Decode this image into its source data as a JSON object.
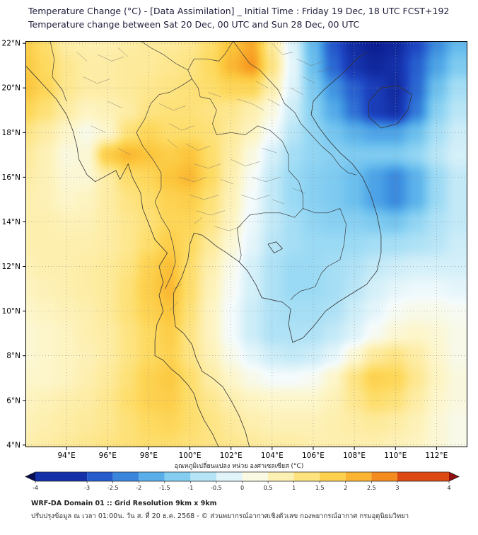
{
  "header": {
    "title_line1": "Temperature Change (°C) - [Data Assimilation] _ Initial Time : Friday 19 Dec, 18 UTC FCST+192",
    "title_line2": "Temperature change between Sat 20 Dec, 00 UTC and Sun 28 Dec, 00 UTC"
  },
  "axes": {
    "x_values": [
      94,
      96,
      98,
      100,
      102,
      104,
      106,
      108,
      110,
      112
    ],
    "x_labels": [
      "94°E",
      "96°E",
      "98°E",
      "100°E",
      "102°E",
      "104°E",
      "106°E",
      "108°E",
      "110°E",
      "112°E"
    ],
    "y_values": [
      22,
      20,
      18,
      16,
      14,
      12,
      10,
      8,
      6,
      4
    ],
    "y_labels": [
      "22°N",
      "20°N",
      "18°N",
      "16°N",
      "14°N",
      "12°N",
      "10°N",
      "8°N",
      "6°N",
      "4°N"
    ]
  },
  "colorbar": {
    "title": "อุณหภูมิเปลี่ยนแปลง หน่วย องศาเซลเซียส (°C)",
    "boundaries": [
      -4,
      -3,
      -2.5,
      -2,
      -1.5,
      -1,
      -0.5,
      0,
      0.5,
      1,
      1.5,
      2,
      2.5,
      3,
      4
    ],
    "labels": [
      "-4",
      "-3",
      "-2.5",
      "-2",
      "-1.5",
      "-1",
      "-0.5",
      "0",
      "0.5",
      "1",
      "1.5",
      "2",
      "2.5",
      "3",
      "4"
    ],
    "under_color": "#070f52",
    "over_color": "#8f0f0c"
  },
  "footer": {
    "line1": "WRF-DA Domain 01 :: Grid Resolution 9km x 9km",
    "line2": "ปรับปรุงข้อมูล ณ เวลา 01:00น. วัน ส. ที่ 20 ธ.ค. 2568 - © ส่วนพยากรณ์อากาศเชิงตัวเลข กองพยากรณ์อากาศ กรมอุตุนิยมวิทยา"
  },
  "chart_data": {
    "type": "heatmap",
    "title": "Temperature change between Sat 20 Dec, 00 UTC and Sun 28 Dec, 00 UTC",
    "units": "°C",
    "value_range": [
      -4,
      4
    ],
    "lon_range": [
      92.0,
      113.5
    ],
    "lat_range": [
      3.9,
      22.1
    ],
    "lons": [
      92,
      93,
      94,
      95,
      96,
      97,
      98,
      99,
      100,
      101,
      102,
      103,
      104,
      105,
      106,
      107,
      108,
      109,
      110,
      111,
      112,
      113
    ],
    "lats": [
      22,
      21,
      20,
      19,
      18,
      17,
      16,
      15,
      14,
      13,
      12,
      11,
      10,
      9,
      8,
      7,
      6,
      5,
      4
    ],
    "values": [
      [
        1.8,
        1.4,
        0.9,
        0.8,
        0.8,
        0.9,
        1.0,
        1.0,
        1.1,
        1.4,
        2.0,
        2.4,
        1.0,
        -0.3,
        -1.6,
        -2.8,
        -3.6,
        -3.9,
        -3.7,
        -3.0,
        -2.2,
        -1.6
      ],
      [
        1.9,
        1.5,
        1.1,
        0.9,
        0.9,
        1.0,
        1.0,
        1.1,
        1.2,
        1.5,
        2.2,
        2.6,
        1.2,
        -0.2,
        -1.5,
        -2.6,
        -3.4,
        -3.7,
        -3.5,
        -2.7,
        -1.9,
        -1.3
      ],
      [
        2.0,
        1.6,
        1.1,
        0.9,
        0.9,
        1.0,
        1.1,
        1.2,
        1.3,
        1.4,
        1.6,
        1.6,
        0.8,
        -0.3,
        -1.3,
        -2.1,
        -2.7,
        -3.2,
        -3.6,
        -2.6,
        -1.5,
        -0.9
      ],
      [
        1.6,
        1.3,
        0.9,
        0.6,
        0.7,
        0.9,
        1.2,
        1.3,
        1.3,
        1.2,
        1.1,
        0.8,
        0.3,
        -0.5,
        -1.2,
        -1.8,
        -2.5,
        -3.2,
        -3.5,
        -2.4,
        -1.2,
        -0.7
      ],
      [
        1.2,
        0.9,
        0.5,
        0.2,
        0.5,
        1.3,
        1.6,
        1.4,
        1.4,
        1.3,
        1.0,
        0.6,
        0.0,
        -0.7,
        -1.1,
        -1.4,
        -1.7,
        -1.9,
        -1.9,
        -1.5,
        -0.9,
        -0.5
      ],
      [
        1.0,
        0.7,
        0.3,
        0.4,
        1.8,
        2.2,
        2.0,
        1.8,
        2.0,
        1.4,
        0.9,
        0.3,
        -0.4,
        -0.9,
        -1.1,
        -1.2,
        -1.3,
        -1.3,
        -1.3,
        -1.1,
        -0.7,
        -0.4
      ],
      [
        0.9,
        0.7,
        0.4,
        0.4,
        0.9,
        1.4,
        1.6,
        2.0,
        2.2,
        1.5,
        0.8,
        0.1,
        -0.6,
        -1.0,
        -1.2,
        -1.3,
        -1.5,
        -1.9,
        -2.2,
        -1.7,
        -1.0,
        -0.6
      ],
      [
        0.8,
        0.7,
        0.5,
        0.6,
        0.9,
        1.2,
        1.4,
        1.7,
        1.8,
        1.3,
        0.7,
        0.0,
        -0.6,
        -1.0,
        -1.2,
        -1.3,
        -1.5,
        -1.9,
        -2.2,
        -1.7,
        -1.0,
        -0.6
      ],
      [
        0.8,
        0.8,
        0.7,
        0.7,
        0.9,
        1.1,
        1.3,
        1.6,
        1.6,
        1.2,
        0.6,
        -0.1,
        -0.6,
        -0.9,
        -1.1,
        -1.2,
        -1.2,
        -1.3,
        -1.4,
        -1.1,
        -0.8,
        -0.6
      ],
      [
        0.8,
        0.8,
        0.8,
        0.8,
        0.9,
        1.1,
        1.4,
        1.8,
        1.5,
        1.0,
        0.4,
        -0.2,
        -0.7,
        -0.9,
        -1.0,
        -1.0,
        -1.0,
        -0.9,
        -0.9,
        -0.8,
        -0.7,
        -0.5
      ],
      [
        0.7,
        0.8,
        0.8,
        0.9,
        1.0,
        1.2,
        1.7,
        2.1,
        1.4,
        0.8,
        0.2,
        -0.4,
        -0.8,
        -1.0,
        -1.0,
        -0.9,
        -0.8,
        -0.6,
        -0.5,
        -0.4,
        -0.4,
        -0.4
      ],
      [
        0.6,
        0.7,
        0.8,
        0.9,
        1.0,
        1.3,
        1.8,
        2.2,
        1.4,
        0.7,
        0.1,
        -0.4,
        -0.8,
        -1.0,
        -1.0,
        -0.9,
        -0.7,
        -0.4,
        -0.2,
        -0.1,
        -0.1,
        -0.2
      ],
      [
        0.5,
        0.6,
        0.7,
        0.8,
        1.0,
        1.3,
        1.7,
        2.0,
        1.3,
        0.6,
        0.0,
        -0.5,
        -0.8,
        -0.9,
        -0.9,
        -0.8,
        -0.5,
        -0.2,
        0.1,
        0.2,
        0.2,
        0.1
      ],
      [
        0.4,
        0.5,
        0.6,
        0.8,
        0.9,
        1.2,
        1.5,
        1.8,
        1.2,
        0.6,
        0.0,
        -0.5,
        -0.8,
        -0.8,
        -0.8,
        -0.6,
        -0.3,
        0.1,
        0.4,
        0.5,
        0.4,
        0.2
      ],
      [
        0.4,
        0.5,
        0.6,
        0.7,
        0.9,
        1.2,
        1.5,
        1.7,
        1.2,
        0.7,
        0.2,
        -0.2,
        -0.5,
        -0.6,
        -0.5,
        -0.2,
        0.4,
        1.0,
        1.2,
        0.9,
        0.5,
        0.2
      ],
      [
        0.5,
        0.5,
        0.6,
        0.8,
        1.0,
        1.3,
        1.7,
        1.9,
        1.4,
        0.9,
        0.5,
        0.2,
        0.0,
        0.0,
        0.1,
        0.5,
        1.2,
        1.7,
        1.6,
        1.1,
        0.6,
        0.3
      ],
      [
        0.6,
        0.7,
        0.8,
        0.9,
        1.1,
        1.4,
        1.7,
        1.8,
        1.4,
        1.1,
        0.8,
        0.6,
        0.5,
        0.5,
        0.5,
        0.7,
        1.1,
        1.4,
        1.3,
        0.9,
        0.5,
        0.3
      ],
      [
        0.7,
        0.8,
        0.9,
        1.0,
        1.1,
        1.3,
        1.5,
        1.6,
        1.4,
        1.2,
        1.0,
        0.8,
        0.7,
        0.7,
        0.7,
        0.8,
        0.9,
        1.0,
        0.9,
        0.7,
        0.4,
        0.2
      ],
      [
        0.8,
        0.9,
        1.0,
        1.1,
        1.2,
        1.3,
        1.4,
        1.4,
        1.3,
        1.2,
        1.1,
        1.0,
        0.9,
        0.9,
        0.8,
        0.8,
        0.8,
        0.8,
        0.7,
        0.6,
        0.4,
        0.2
      ]
    ],
    "colormap_stops": [
      {
        "value": -4,
        "color": "#0a1a8c"
      },
      {
        "value": -3,
        "color": "#1e46c3"
      },
      {
        "value": -2.5,
        "color": "#2e6fd5"
      },
      {
        "value": -2,
        "color": "#459ce4"
      },
      {
        "value": -1.5,
        "color": "#6cc0ee"
      },
      {
        "value": -1,
        "color": "#9bdaf4"
      },
      {
        "value": -0.5,
        "color": "#cdedf8"
      },
      {
        "value": 0,
        "color": "#f4fbfc"
      },
      {
        "value": 0.5,
        "color": "#fdf6cb"
      },
      {
        "value": 1,
        "color": "#fdea9b"
      },
      {
        "value": 1.5,
        "color": "#fdda60"
      },
      {
        "value": 2,
        "color": "#fcc63c"
      },
      {
        "value": 2.5,
        "color": "#f8a226"
      },
      {
        "value": 3,
        "color": "#ef7417"
      },
      {
        "value": 4,
        "color": "#c81e0d"
      }
    ]
  }
}
